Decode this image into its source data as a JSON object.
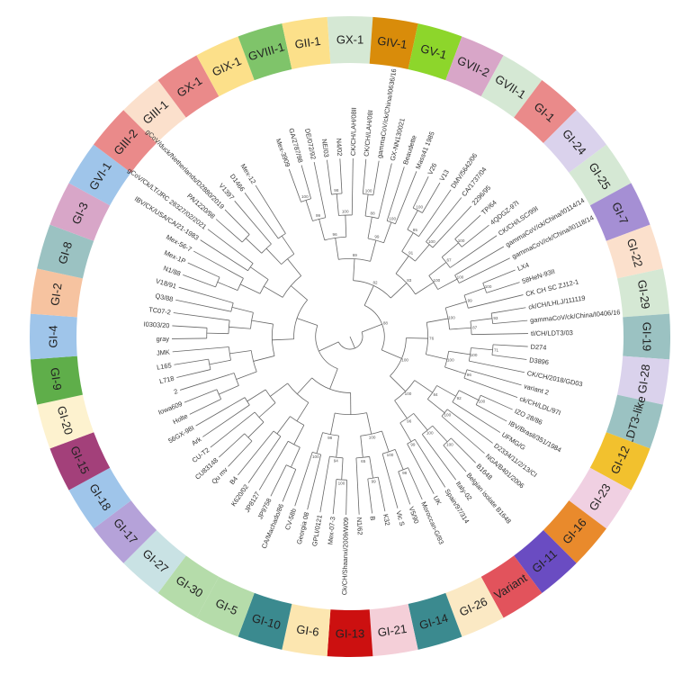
{
  "ring": {
    "segments": [
      {
        "label": "GX-1",
        "color": "#d5e8d4"
      },
      {
        "label": "GIV-1",
        "color": "#d98c0a"
      },
      {
        "label": "GV-1",
        "color": "#8dd62b"
      },
      {
        "label": "GVII-2",
        "color": "#d8a6c8"
      },
      {
        "label": "GVII-1",
        "color": "#d5e8d4"
      },
      {
        "label": "GI-1",
        "color": "#ea8a8a"
      },
      {
        "label": "GI-24",
        "color": "#dad2ec"
      },
      {
        "label": "GI-25",
        "color": "#d5e8d4"
      },
      {
        "label": "GI-7",
        "color": "#a58fd4"
      },
      {
        "label": "GI-22",
        "color": "#fbe0cc"
      },
      {
        "label": "GI-29",
        "color": "#d5e8d4"
      },
      {
        "label": "GI-19",
        "color": "#9bc2c2"
      },
      {
        "label": "GI-28",
        "color": "#dad2ec"
      },
      {
        "label": "LDT3-like",
        "color": "#9bc2c2"
      },
      {
        "label": "GI-12",
        "color": "#f2c12e"
      },
      {
        "label": "GI-23",
        "color": "#f0d0e2"
      },
      {
        "label": "GI-16",
        "color": "#e98a2c"
      },
      {
        "label": "GI-11",
        "color": "#6a4cc2"
      },
      {
        "label": "Variant",
        "color": "#e2535c"
      },
      {
        "label": "GI-26",
        "color": "#fbe9c4"
      },
      {
        "label": "GI-14",
        "color": "#3b8a8f"
      },
      {
        "label": "GI-21",
        "color": "#f4cfd8"
      },
      {
        "label": "GI-13",
        "color": "#cc1010"
      },
      {
        "label": "GI-6",
        "color": "#fce6b0"
      },
      {
        "label": "GI-10",
        "color": "#3b8a8f"
      },
      {
        "label": "GI-5",
        "color": "#b5dcaa"
      },
      {
        "label": "GI-30",
        "color": "#b5dcaa"
      },
      {
        "label": "GI-27",
        "color": "#c9e2e4"
      },
      {
        "label": "GI-17",
        "color": "#b5a2d9"
      },
      {
        "label": "GI-18",
        "color": "#9fc5ea"
      },
      {
        "label": "GI-15",
        "color": "#a3407a"
      },
      {
        "label": "GI-20",
        "color": "#fdf2cf"
      },
      {
        "label": "GI-9",
        "color": "#5fae4a"
      },
      {
        "label": "GI-4",
        "color": "#9fc5ea"
      },
      {
        "label": "GI-2",
        "color": "#f6c3a0"
      },
      {
        "label": "GI-8",
        "color": "#9bc2c2"
      },
      {
        "label": "GI-3",
        "color": "#d8a6c8"
      },
      {
        "label": "GVI-1",
        "color": "#9fc5ea"
      },
      {
        "label": "GIII-2",
        "color": "#ea8a8a"
      },
      {
        "label": "GIII-1",
        "color": "#fbe0cc"
      },
      {
        "label": "GX-1",
        "color": "#ea8a8a"
      },
      {
        "label": "GIX-1",
        "color": "#fce08a"
      },
      {
        "label": "GVIII-1",
        "color": "#7fc46a"
      },
      {
        "label": "GII-1",
        "color": "#fce08a"
      }
    ]
  },
  "tree": {
    "taxa": [
      "Mex-3909",
      "GA/2787/98",
      "DE/072/92",
      "NE/03",
      "N4/02",
      "CK/CH/LAH/08II",
      "CK/CH/LAH/08I",
      "gammaCoV/ck/China/I0636/16",
      "GX-NN130021",
      "Beaudette",
      "Mass41 1985",
      "V26",
      "V13",
      "DMV/5642/06",
      "CA/1737/04",
      "2296/95",
      "TP/64",
      "4QDGZ-97I",
      "CK/CH/LSC/99I",
      "gammaCoV/ck/China/I0114/14",
      "gammaCoV/ck/China/I0118/14",
      "LX4",
      "58HeN-93II",
      "CK CH SC ZJ12-1",
      "ck/CH/LHLJ/111119",
      "gammaCoV/ck/China/I0406/16",
      "tl/CH/LDT3/03",
      "D274",
      "D3896",
      "CK/CH/2018/GD03",
      "variant 2",
      "ck/CH/LDL/97I",
      "IZO 28/86",
      "IBV/Brasil/351/1984",
      "UFMG/G",
      "D2334/11/2/13/CI",
      "NGA/B401/2006",
      "B1648",
      "Belgian isolate B1648",
      "Italy-02",
      "Spain/97/314",
      "UK",
      "Moroccan-G/83",
      "V5/90",
      "Vic S",
      "K32",
      "B",
      "N1/62",
      "Ck/CH/Shaanxi/2009/W09",
      "Mex-07-3",
      "GPLI/0121",
      "Georgia 08",
      "CV-58b",
      "CA/Machado/86",
      "JP9758",
      "JP8127",
      "K620/02",
      "B4",
      "Qu mv",
      "CU83148",
      "CU-T2",
      "Ark",
      "56GX-98I",
      "Holte",
      "Iowa609",
      "2",
      "L718",
      "L165",
      "JMK",
      "gray",
      "I0303/20",
      "TC07-2",
      "Q3/88",
      "V18/91",
      "N1/88",
      "Mex-1P",
      "Mex-56-7",
      "IBV/CK/USA/CA/21-1983",
      "gCoV/Ck/LT/JRC 28327/02/2021",
      "PA/1220/98",
      "gCoV/duck/Netherlands/D2880/2019",
      "V1397",
      "D1466",
      "Mex-12"
    ],
    "bootstrap": [
      "100",
      "99",
      "98",
      "100",
      "96",
      "100",
      "88",
      "100",
      "99",
      "69",
      "100",
      "85",
      "100",
      "91",
      "100",
      "67",
      "100",
      "100",
      "83",
      "82",
      "100",
      "99",
      "93",
      "87",
      "100",
      "71",
      "100",
      "96",
      "100",
      "76",
      "100",
      "92",
      "100",
      "84",
      "100",
      "100",
      "99",
      "96",
      "100",
      "100",
      "88",
      "98",
      "100",
      "99",
      "65",
      "100",
      "100",
      "94",
      "100",
      "98"
    ]
  }
}
